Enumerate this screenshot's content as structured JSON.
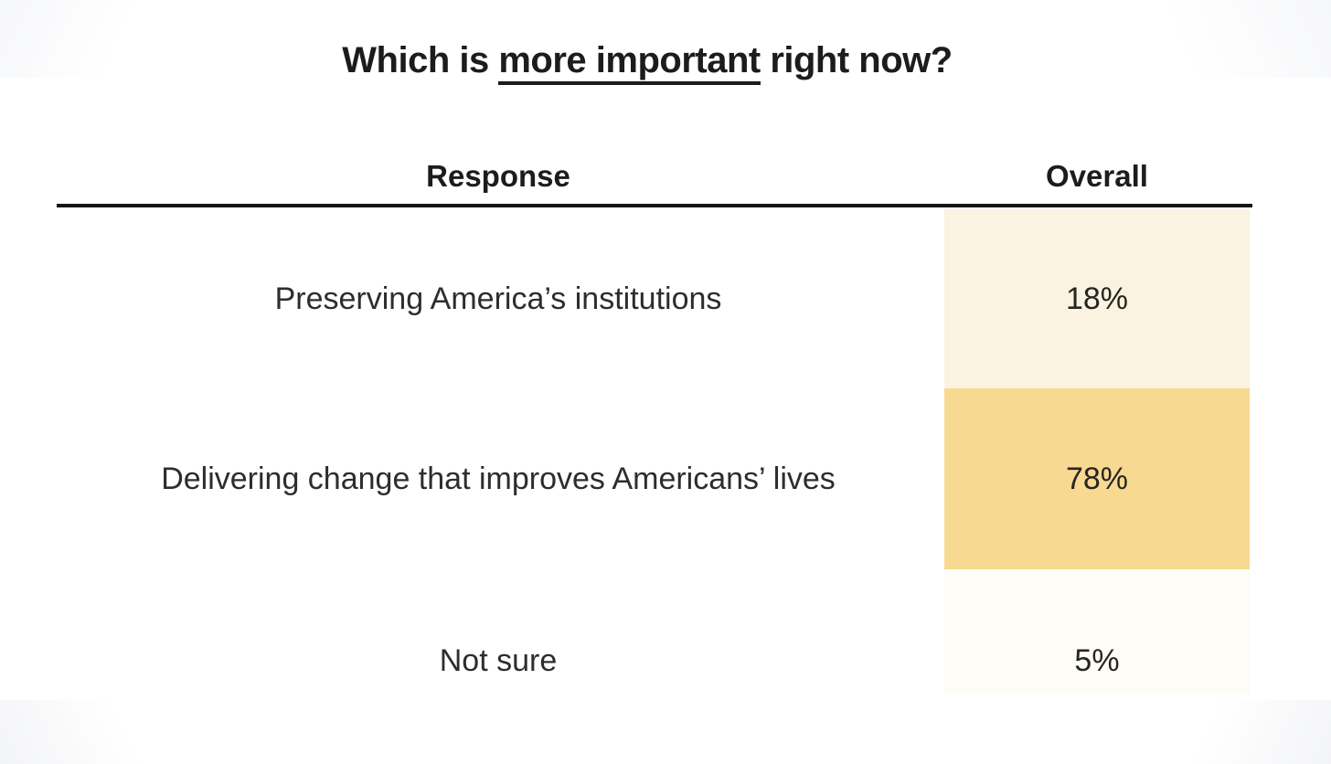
{
  "page": {
    "background": "#ffffff",
    "vignette_color": "#f4f5f7"
  },
  "title": {
    "prefix": "Which is ",
    "underlined_phrase": "more important",
    "suffix": " right now?"
  },
  "table": {
    "columns": {
      "response": "Response",
      "overall": "Overall"
    },
    "header_rule_color": "#161616",
    "rows": [
      {
        "response": "Preserving America’s institutions",
        "overall": "18%",
        "cell_color": "#faf3e2"
      },
      {
        "response": "Delivering change that improves Americans’ lives",
        "overall": "78%",
        "cell_color": "#f8d992"
      },
      {
        "response": "Not sure",
        "overall": "5%",
        "cell_color": "#fdfcf6"
      }
    ]
  },
  "chart_data": {
    "type": "table",
    "title": "Which is more important right now?",
    "title_underlined_phrase": "more important",
    "columns": [
      "Response",
      "Overall"
    ],
    "categories": [
      "Preserving America’s institutions",
      "Delivering change that improves Americans’ lives",
      "Not sure"
    ],
    "values": [
      18,
      78,
      5
    ],
    "value_unit": "percent",
    "legend": "none",
    "shading": {
      "style": "Overall cells shaded yellow, intensity scaled to value",
      "cell_colors": [
        "#faf3e2",
        "#f8d992",
        "#fdfcf6"
      ]
    }
  }
}
